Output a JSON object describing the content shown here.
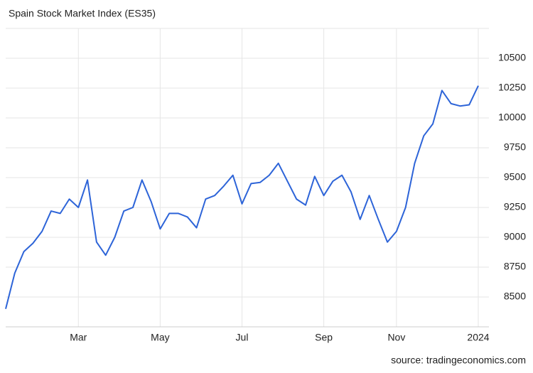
{
  "chart_data": {
    "type": "line",
    "title": "Spain Stock Market Index (ES35)",
    "source": "source: tradingeconomics.com",
    "categories": [
      null,
      null,
      null,
      null,
      null,
      null,
      null,
      null,
      "Mar",
      null,
      null,
      null,
      null,
      null,
      null,
      null,
      null,
      "May",
      null,
      null,
      null,
      null,
      null,
      null,
      null,
      null,
      "Jul",
      null,
      null,
      null,
      null,
      null,
      null,
      null,
      null,
      "Sep",
      null,
      null,
      null,
      null,
      null,
      null,
      null,
      "Nov",
      null,
      null,
      null,
      null,
      null,
      null,
      null,
      null,
      "2024"
    ],
    "series": [
      {
        "name": "ES35",
        "color": "#2d64d8",
        "values": [
          8400,
          8700,
          8880,
          8950,
          9050,
          9220,
          9200,
          9320,
          9250,
          9480,
          8960,
          8850,
          9000,
          9220,
          9250,
          9480,
          9300,
          9070,
          9200,
          9200,
          9170,
          9080,
          9320,
          9350,
          9430,
          9520,
          9280,
          9450,
          9460,
          9520,
          9620,
          9470,
          9320,
          9270,
          9510,
          9350,
          9470,
          9520,
          9380,
          9150,
          9350,
          9150,
          8960,
          9050,
          9250,
          9620,
          9850,
          9950,
          10230,
          10120,
          10100,
          10110,
          10270
        ]
      }
    ],
    "ylim": [
      8250,
      10750
    ],
    "yticks": [
      8500,
      8750,
      9000,
      9250,
      9500,
      9750,
      10000,
      10250,
      10500
    ],
    "grid": true
  }
}
